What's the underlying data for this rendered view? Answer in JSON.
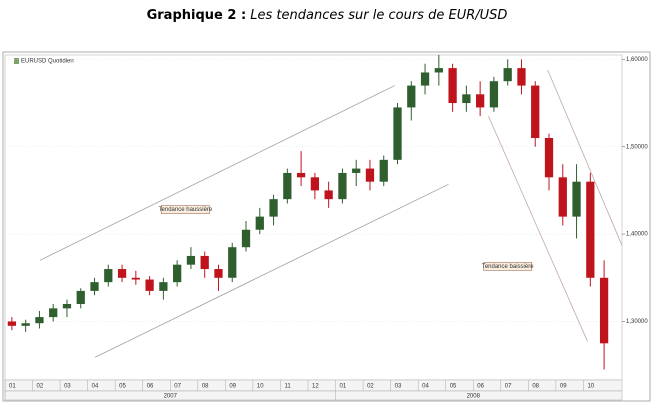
{
  "chart_data": {
    "type": "candlestick",
    "label": "Graphique 2 :",
    "title": "Les tendances sur le cours de EUR/USD",
    "instrument": "EURUSD Quotidien",
    "categories": [
      "01",
      "02",
      "03",
      "04",
      "05",
      "06",
      "07",
      "08",
      "09",
      "10",
      "11",
      "12",
      "01",
      "02",
      "03",
      "04",
      "05",
      "06",
      "07",
      "08",
      "09",
      "10"
    ],
    "years": [
      "2007",
      "2008"
    ],
    "open": [
      1.3,
      1.295,
      1.298,
      1.305,
      1.315,
      1.32,
      1.335,
      1.345,
      1.36,
      1.35,
      1.348,
      1.335,
      1.345,
      1.365,
      1.375,
      1.36,
      1.35,
      1.385,
      1.405,
      1.42,
      1.44,
      1.47,
      1.465,
      1.45,
      1.44,
      1.47,
      1.475,
      1.46,
      1.485,
      1.545,
      1.57,
      1.585,
      1.59,
      1.55,
      1.56,
      1.545,
      1.575,
      1.59,
      1.57,
      1.51,
      1.465,
      1.42,
      1.46,
      1.35
    ],
    "high": [
      1.305,
      1.302,
      1.312,
      1.32,
      1.325,
      1.338,
      1.35,
      1.365,
      1.365,
      1.358,
      1.352,
      1.35,
      1.37,
      1.385,
      1.38,
      1.365,
      1.39,
      1.415,
      1.43,
      1.445,
      1.475,
      1.495,
      1.47,
      1.46,
      1.475,
      1.485,
      1.485,
      1.49,
      1.55,
      1.575,
      1.595,
      1.605,
      1.595,
      1.57,
      1.575,
      1.58,
      1.6,
      1.6,
      1.575,
      1.515,
      1.48,
      1.48,
      1.47,
      1.37
    ],
    "low": [
      1.29,
      1.288,
      1.292,
      1.3,
      1.305,
      1.315,
      1.33,
      1.34,
      1.345,
      1.342,
      1.33,
      1.325,
      1.34,
      1.36,
      1.35,
      1.335,
      1.345,
      1.38,
      1.4,
      1.41,
      1.435,
      1.455,
      1.44,
      1.43,
      1.435,
      1.455,
      1.45,
      1.455,
      1.48,
      1.53,
      1.56,
      1.57,
      1.54,
      1.54,
      1.535,
      1.54,
      1.57,
      1.56,
      1.5,
      1.45,
      1.41,
      1.395,
      1.34,
      1.245
    ],
    "close": [
      1.295,
      1.298,
      1.305,
      1.315,
      1.32,
      1.335,
      1.345,
      1.36,
      1.35,
      1.348,
      1.335,
      1.345,
      1.365,
      1.375,
      1.36,
      1.35,
      1.385,
      1.405,
      1.42,
      1.44,
      1.47,
      1.465,
      1.45,
      1.44,
      1.47,
      1.475,
      1.46,
      1.485,
      1.545,
      1.57,
      1.585,
      1.59,
      1.55,
      1.56,
      1.545,
      1.575,
      1.59,
      1.57,
      1.51,
      1.465,
      1.42,
      1.46,
      1.35,
      1.275
    ],
    "up_color": "#2f5f2f",
    "down_color": "#c0141c",
    "xlim": [
      -0.5,
      44.3
    ],
    "ylim": [
      1.233,
      1.605
    ],
    "yticks": [
      {
        "value": 1.3,
        "label": "1,30000"
      },
      {
        "value": 1.4,
        "label": "1,40000"
      },
      {
        "value": 1.5,
        "label": "1,50000"
      },
      {
        "value": 1.6,
        "label": "1,60000"
      }
    ],
    "grid": true,
    "channels": [
      {
        "color": "#a0a0a0",
        "lines": [
          [
            [
              2.04,
              1.37
            ],
            [
              27.8,
              1.57
            ]
          ],
          [
            [
              6.04,
              1.259
            ],
            [
              31.7,
              1.457
            ]
          ]
        ]
      },
      {
        "color": "#c0a8a8",
        "lines": [
          [
            [
              38.9,
              1.588
            ],
            [
              44.3,
              1.387
            ]
          ],
          [
            [
              34.6,
              1.535
            ],
            [
              41.8,
              1.277
            ]
          ]
        ]
      }
    ],
    "annotations": [
      {
        "text": "Tendance haussière",
        "x": 12.6,
        "y": 1.428
      },
      {
        "text": "Tendance baissière",
        "x": 36.0,
        "y": 1.363
      }
    ]
  }
}
